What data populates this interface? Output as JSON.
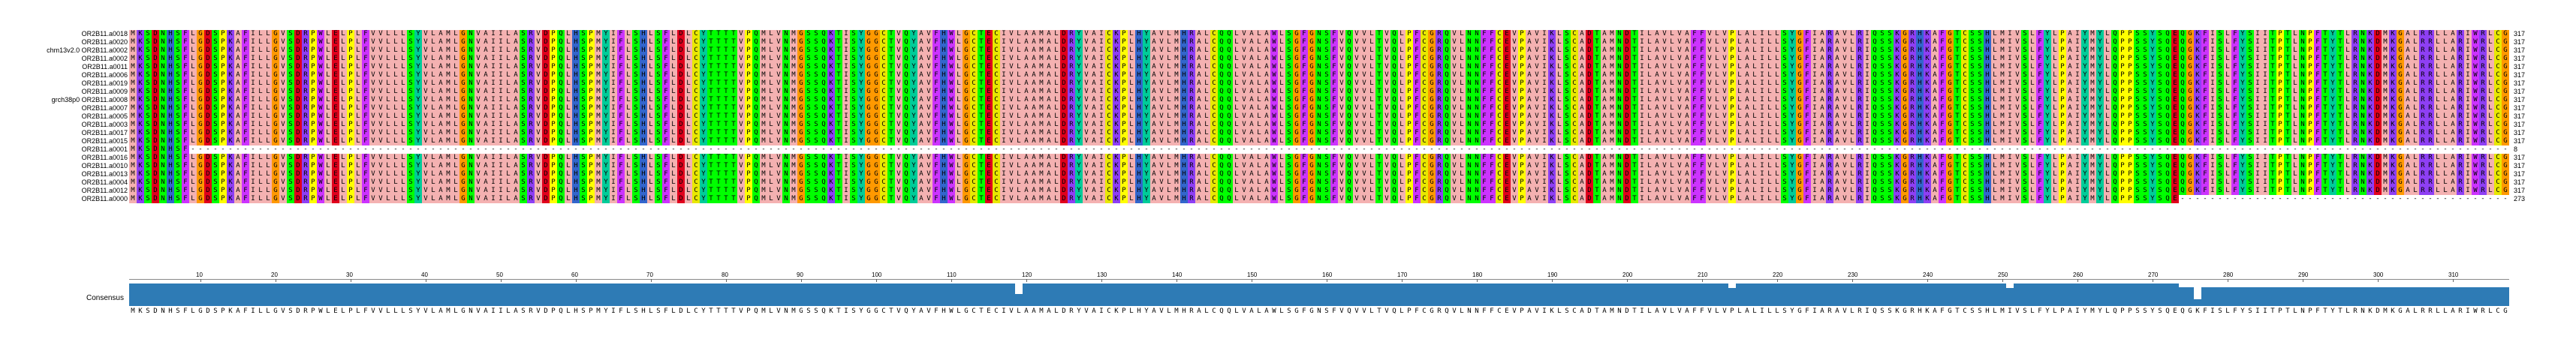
{
  "alignment": {
    "sequences": [
      {
        "name": "OR2B11.a0018",
        "count": "317"
      },
      {
        "name": "OR2B11.a0020",
        "count": "317"
      },
      {
        "name": "chm13v2.0 OR2B11.a0002",
        "count": "317"
      },
      {
        "name": "OR2B11.a0002",
        "count": "317"
      },
      {
        "name": "OR2B11.a0011",
        "count": "317"
      },
      {
        "name": "OR2B11.a0006",
        "count": "317"
      },
      {
        "name": "OR2B11.a0019",
        "count": "317"
      },
      {
        "name": "OR2B11.a0009",
        "count": "317"
      },
      {
        "name": "grch38p0 OR2B11.a0008",
        "count": "317"
      },
      {
        "name": "OR2B11.a0007",
        "count": "317"
      },
      {
        "name": "OR2B11.a0005",
        "count": "317"
      },
      {
        "name": "OR2B11.a0003",
        "count": "317"
      },
      {
        "name": "OR2B11.a0017",
        "count": "317"
      },
      {
        "name": "OR2B11.a0015",
        "count": "317"
      },
      {
        "name": "OR2B11.a0001",
        "count": "8"
      },
      {
        "name": "OR2B11.a0016",
        "count": "317"
      },
      {
        "name": "OR2B11.a0010",
        "count": "317"
      },
      {
        "name": "OR2B11.a0013",
        "count": "317"
      },
      {
        "name": "OR2B11.a0004",
        "count": "317"
      },
      {
        "name": "OR2B11.a0012",
        "count": "317"
      },
      {
        "name": "OR2B11.a0000",
        "count": "273"
      }
    ],
    "consensus_label": "Consensus",
    "consensus": "MKSDNHSFLGDSPKAFILLGVSDRPWLELPLFVVLLLSYVLAMLGNVAIILASRVDPQLHSPMYIFLSHLSFLDLCYTTTTVPQMLVNMGSSQKTISYGGCTVQYAVFHWLGCTECIVLAAMALDRYVAICKPLHYAVLMHRALCQQLVALAWLSGFGNSFVQVVLTVQLPFCGRQVLNNFFCEVPAVIKLSCADTAMNDTILAVLVAFFVLVPLALILLSYGFIARAVLRIQSSKGRHKAFGTCSSHLMIVSLFYLPAIYMYLQPPSSYSQEQGKFISLFYSIITPTLNPFTYTLRNKDMKGALRRLLARIWRLCG",
    "ruler_ticks": [
      "10",
      "20",
      "30",
      "40",
      "50",
      "60",
      "70",
      "80",
      "90",
      "100",
      "110",
      "120",
      "130",
      "140",
      "150",
      "160",
      "170",
      "180",
      "190",
      "200",
      "210",
      "220",
      "230",
      "240",
      "250",
      "260",
      "270",
      "280",
      "290",
      "300",
      "310"
    ],
    "residue_colors": {
      "A": "#f4b1b1",
      "C": "#e8e800",
      "D": "#e0001c",
      "E": "#e0001c",
      "F": "#cc33ff",
      "G": "#ff9900",
      "H": "#3366cc",
      "I": "#f4b1b1",
      "K": "#8e3ff4",
      "L": "#f4b1b1",
      "M": "#f4b1b1",
      "N": "#00ff00",
      "P": "#ffff00",
      "Q": "#00ff00",
      "R": "#8e3ff4",
      "S": "#00ff00",
      "T": "#00ff00",
      "V": "#f4b1b1",
      "W": "#cc33ff",
      "Y": "#00cc99",
      "-": "#ffffff"
    },
    "bar_color": "#2e7bb5"
  }
}
